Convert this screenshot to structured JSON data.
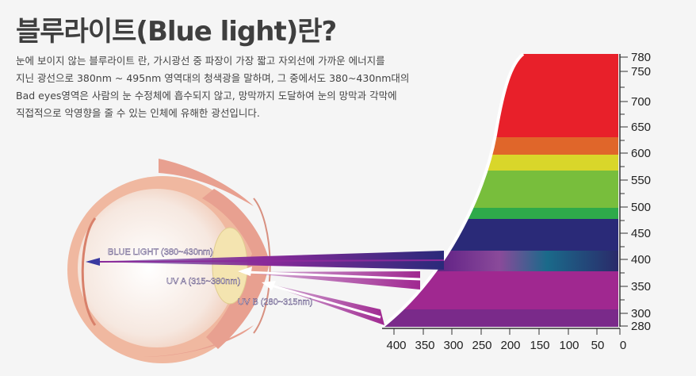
{
  "title": "블루라이트(Blue light)란?",
  "description": [
    "눈에 보이지 않는 블루라이트 란, 가시광선 중 파장이 가장 짧고 자외선에 가까운 에너지를",
    "지닌 광선으로 380nm ~ 495nm 영역대의 청색광을 말하며, 그 중에서도 380~430nm대의",
    "Bad eyes영역은 사람의 눈 수정체에 흡수되지 않고, 망막까지 도달하여 눈의 망막과 각막에",
    "직접적으로 악영향을 줄 수 있는 인체에 유해한 광선입니다."
  ],
  "rays": {
    "blue": "BLUE LIGHT (380~430nm)",
    "uva": "UV A (315~380nm)",
    "uvb": "UV B (280~315nm)"
  },
  "right_axis_labels": [
    "780",
    "750",
    "700",
    "650",
    "600",
    "550",
    "500",
    "450",
    "400",
    "350",
    "300",
    "280"
  ],
  "bottom_axis_labels": [
    "400",
    "350",
    "300",
    "250",
    "200",
    "150",
    "100",
    "50",
    "0"
  ],
  "colors": {
    "band_red": "#e8202a",
    "band_orange": "#e0662a",
    "band_yellow": "#d9d62a",
    "band_green": "#78be3c",
    "band_green_dark": "#2eaa4a",
    "band_indigo": "#2a2a78",
    "band_violet": "#7a2a8a",
    "band_magenta": "#a02890",
    "ray_magenta": "#8a2a9a",
    "eye_flesh": "#f2c1aa"
  }
}
